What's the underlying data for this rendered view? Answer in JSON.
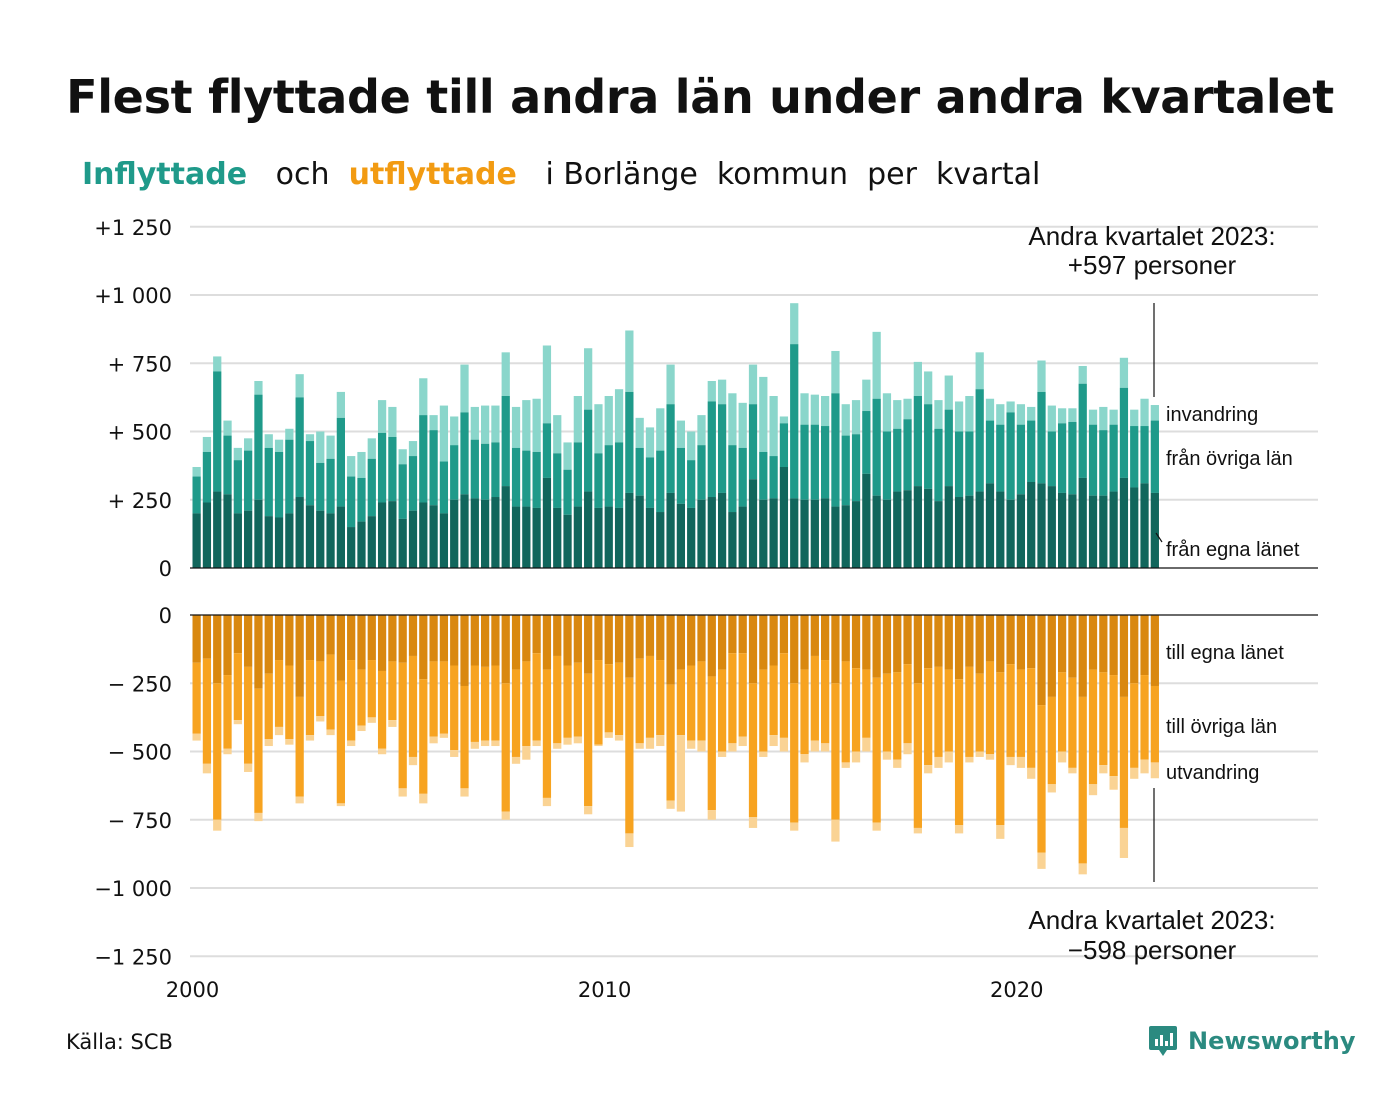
{
  "title": "Flest flyttade till andra län under andra kvartalet",
  "subtitle": {
    "in_word": "Inflyttade",
    "and_word": "och",
    "out_word": "utflyttade",
    "rest": "i Borlänge  kommun  per  kvartal"
  },
  "source": "Källa: SCB",
  "brand": "Newsworthy",
  "colors": {
    "in_own": "#11665c",
    "in_other": "#1f9a8a",
    "in_immig": "#8ad6cb",
    "out_own": "#d9880f",
    "out_other": "#f7a320",
    "out_emig": "#fad394",
    "grid": "#dddddd",
    "brand": "#2b8a80"
  },
  "annotations": {
    "top_line1": "Andra kvartalet 2023:",
    "top_line2": "+597 personer",
    "bottom_line1": "Andra kvartalet 2023:",
    "bottom_line2": "−598 personer"
  },
  "series_labels": {
    "in_immig": "invandring",
    "in_other": "från övriga län",
    "in_own": "från egna länet",
    "out_own": "till egna länet",
    "out_other": "till övriga län",
    "out_emig": "utvandring"
  },
  "chart_data": {
    "type": "bar",
    "stacked": true,
    "x_axis": {
      "ticks": [
        "2000",
        "2010",
        "2020"
      ],
      "range": [
        "2000 Q1",
        "2026 Q4"
      ]
    },
    "y_top": {
      "ticks": [
        {
          "v": 1250,
          "label": "+1 250"
        },
        {
          "v": 1000,
          "label": "+1 000"
        },
        {
          "v": 750,
          "label": "+  750"
        },
        {
          "v": 500,
          "label": "+  500"
        },
        {
          "v": 250,
          "label": "+  250"
        },
        {
          "v": 0,
          "label": "0"
        }
      ]
    },
    "y_bottom": {
      "ticks": [
        {
          "v": 0,
          "label": "0"
        },
        {
          "v": -250,
          "label": "−  250"
        },
        {
          "v": -500,
          "label": "−  500"
        },
        {
          "v": -750,
          "label": "−  750"
        },
        {
          "v": -1000,
          "label": "−1 000"
        },
        {
          "v": -1250,
          "label": "−1 250"
        }
      ]
    },
    "grid": true,
    "first_period": "2000 Q1",
    "last_period": "2023 Q2",
    "inflyttade": {
      "series_names": [
        "från egna länet",
        "från övriga län",
        "invandring"
      ],
      "own": [
        200,
        240,
        280,
        270,
        200,
        210,
        250,
        190,
        185,
        200,
        260,
        230,
        210,
        200,
        225,
        150,
        170,
        190,
        240,
        245,
        180,
        210,
        240,
        230,
        200,
        250,
        270,
        255,
        250,
        260,
        300,
        225,
        225,
        220,
        330,
        220,
        195,
        225,
        280,
        220,
        225,
        220,
        275,
        265,
        220,
        205,
        275,
        235,
        220,
        250,
        260,
        275,
        205,
        225,
        325,
        250,
        255,
        370,
        255,
        250,
        250,
        255,
        225,
        230,
        245,
        345,
        265,
        250,
        280,
        285,
        300,
        290,
        245,
        300,
        260,
        265,
        280,
        310,
        280,
        250,
        270,
        315,
        310,
        300,
        275,
        270,
        330,
        265,
        265,
        280,
        330,
        295,
        310,
        275
      ],
      "other": [
        335,
        425,
        720,
        485,
        395,
        430,
        635,
        440,
        425,
        470,
        625,
        465,
        385,
        400,
        550,
        335,
        330,
        400,
        495,
        480,
        380,
        410,
        560,
        505,
        390,
        450,
        570,
        470,
        455,
        460,
        630,
        440,
        430,
        425,
        530,
        420,
        360,
        460,
        580,
        420,
        450,
        460,
        645,
        440,
        405,
        430,
        600,
        440,
        395,
        450,
        610,
        600,
        450,
        440,
        600,
        425,
        410,
        530,
        820,
        525,
        525,
        520,
        640,
        485,
        490,
        575,
        620,
        500,
        510,
        545,
        630,
        600,
        510,
        580,
        500,
        500,
        655,
        540,
        525,
        570,
        525,
        540,
        645,
        500,
        530,
        535,
        675,
        525,
        505,
        525,
        660,
        520,
        520,
        540
      ],
      "total": [
        370,
        480,
        775,
        540,
        440,
        475,
        685,
        490,
        470,
        510,
        710,
        490,
        500,
        485,
        645,
        410,
        425,
        475,
        615,
        590,
        435,
        465,
        695,
        560,
        595,
        555,
        745,
        590,
        595,
        595,
        790,
        590,
        615,
        620,
        815,
        560,
        460,
        630,
        805,
        600,
        630,
        655,
        870,
        550,
        515,
        585,
        745,
        540,
        500,
        560,
        685,
        690,
        640,
        605,
        745,
        700,
        630,
        555,
        970,
        640,
        635,
        630,
        795,
        600,
        615,
        690,
        865,
        640,
        615,
        620,
        755,
        720,
        615,
        705,
        610,
        630,
        790,
        620,
        600,
        610,
        600,
        590,
        760,
        595,
        585,
        585,
        740,
        580,
        590,
        580,
        770,
        580,
        620,
        597
      ]
    },
    "utflyttade": {
      "series_names": [
        "till egna länet",
        "till övriga län",
        "utvandring"
      ],
      "own": [
        -175,
        -160,
        -250,
        -220,
        -140,
        -190,
        -270,
        -215,
        -165,
        -185,
        -300,
        -165,
        -170,
        -145,
        -240,
        -165,
        -200,
        -165,
        -205,
        -170,
        -175,
        -150,
        -235,
        -170,
        -170,
        -185,
        -260,
        -185,
        -190,
        -185,
        -250,
        -200,
        -170,
        -140,
        -200,
        -150,
        -185,
        -175,
        -215,
        -165,
        -180,
        -175,
        -230,
        -160,
        -150,
        -165,
        -255,
        -200,
        -185,
        -170,
        -225,
        -200,
        -140,
        -140,
        -250,
        -200,
        -185,
        -140,
        -250,
        -200,
        -150,
        -165,
        -250,
        -170,
        -195,
        -200,
        -230,
        -215,
        -210,
        -180,
        -250,
        -195,
        -190,
        -200,
        -235,
        -190,
        -215,
        -170,
        -210,
        -180,
        -200,
        -195,
        -330,
        -300,
        -210,
        -230,
        -300,
        -200,
        -210,
        -220,
        -300,
        -250,
        -220,
        -260
      ],
      "other": [
        -435,
        -545,
        -750,
        -490,
        -385,
        -545,
        -725,
        -455,
        -410,
        -455,
        -665,
        -440,
        -370,
        -420,
        -690,
        -460,
        -405,
        -375,
        -490,
        -385,
        -635,
        -520,
        -655,
        -445,
        -435,
        -495,
        -635,
        -465,
        -460,
        -460,
        -720,
        -520,
        -480,
        -460,
        -670,
        -470,
        -450,
        -445,
        -700,
        -475,
        -430,
        -440,
        -800,
        -470,
        -450,
        -440,
        -680,
        -440,
        -460,
        -460,
        -715,
        -500,
        -470,
        -445,
        -740,
        -500,
        -440,
        -450,
        -760,
        -510,
        -460,
        -470,
        -750,
        -540,
        -500,
        -450,
        -760,
        -500,
        -530,
        -470,
        -780,
        -550,
        -520,
        -500,
        -770,
        -520,
        -500,
        -510,
        -770,
        -520,
        -520,
        -560,
        -870,
        -620,
        -500,
        -560,
        -910,
        -620,
        -550,
        -590,
        -780,
        -560,
        -530,
        -540
      ],
      "total": [
        -460,
        -580,
        -790,
        -510,
        -400,
        -575,
        -755,
        -480,
        -440,
        -475,
        -690,
        -460,
        -390,
        -440,
        -700,
        -480,
        -425,
        -395,
        -510,
        -410,
        -665,
        -550,
        -690,
        -470,
        -450,
        -520,
        -665,
        -490,
        -480,
        -480,
        -750,
        -545,
        -530,
        -480,
        -700,
        -490,
        -475,
        -470,
        -730,
        -480,
        -450,
        -460,
        -850,
        -490,
        -490,
        -480,
        -710,
        -720,
        -490,
        -500,
        -750,
        -520,
        -500,
        -480,
        -780,
        -520,
        -480,
        -500,
        -790,
        -540,
        -500,
        -500,
        -830,
        -560,
        -540,
        -500,
        -790,
        -530,
        -560,
        -510,
        -800,
        -580,
        -560,
        -540,
        -800,
        -540,
        -520,
        -530,
        -820,
        -550,
        -560,
        -600,
        -930,
        -650,
        -540,
        -580,
        -950,
        -660,
        -580,
        -640,
        -890,
        -600,
        -580,
        -598
      ]
    }
  }
}
